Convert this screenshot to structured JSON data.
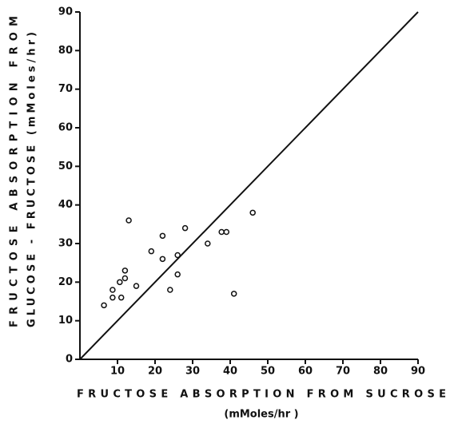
{
  "chart_data": {
    "type": "scatter",
    "xlabel": [
      "FRUCTOSE ABSORPTION FROM SUCROSE",
      "(mMoles/hr )"
    ],
    "ylabel": [
      "FRUCTOSE ABSORPTION FROM",
      "GLUCOSE - FRUCTOSE (mMoles/hr)"
    ],
    "x": [
      6.4,
      8.7,
      8.7,
      10.6,
      11,
      12,
      12,
      13,
      15,
      19,
      22,
      22,
      24,
      26,
      26,
      28,
      34,
      37.7,
      39,
      41,
      46
    ],
    "values": [
      14,
      16,
      18,
      20,
      16,
      21,
      23,
      36,
      19,
      28,
      32,
      26,
      18,
      22,
      27,
      34,
      30,
      33,
      33,
      17,
      38
    ],
    "color": "#111111",
    "xlim": [
      0,
      90
    ],
    "ylim": [
      0,
      90
    ],
    "xticks": [
      10,
      20,
      30,
      40,
      50,
      60,
      70,
      80,
      90
    ],
    "yticks": [
      0,
      10,
      20,
      30,
      40,
      50,
      60,
      70,
      80,
      90
    ],
    "identity_line": true
  }
}
